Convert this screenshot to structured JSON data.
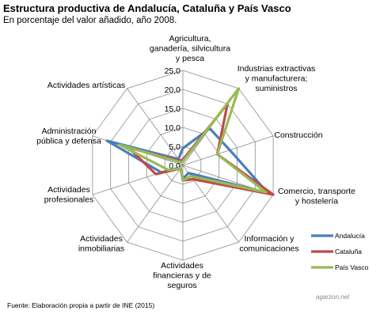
{
  "header": {
    "title": "Estructura productiva de Andalucía, Cataluña y País Vasco",
    "subtitle": "En porcentaje del valor añadido, año 2008."
  },
  "footer": {
    "source": "Fuente: Elaboración propia a partir de INE (2015)",
    "watermark": "agarzon.net"
  },
  "chart_data": {
    "type": "radar",
    "title": "Estructura productiva de Andalucía, Cataluña y País Vasco",
    "subtitle": "En porcentaje del valor añadido, año 2008.",
    "categories": [
      [
        "Agricultura,",
        "ganadería, silvicultura",
        "y pesca"
      ],
      [
        "Industrias extractivas",
        "y manufacturera;",
        "suministros"
      ],
      [
        "Construcción"
      ],
      [
        "Comercio, transporte",
        "y hostelería"
      ],
      [
        "Información y",
        "comunicaciones"
      ],
      [
        "Actividades",
        "financieras y de",
        "seguros"
      ],
      [
        "Actividades",
        "inmobiliarias"
      ],
      [
        "Actividades",
        "profesionales"
      ],
      [
        "Administración",
        "pública y defensa"
      ],
      [
        "Actividades artísticas"
      ]
    ],
    "ticks": [
      "0,0",
      "5,0",
      "10,0",
      "15,0",
      "20,0",
      "25,0"
    ],
    "rlim": [
      0,
      25
    ],
    "grid": true,
    "legend_position": "bottom-right",
    "series": [
      {
        "name": "Andalucía",
        "color": "#4a7ebb",
        "values": [
          4.5,
          12.0,
          13.0,
          23.5,
          2.5,
          3.5,
          1.0,
          6.0,
          21.0,
          2.0
        ]
      },
      {
        "name": "Cataluña",
        "color": "#be4b48",
        "values": [
          1.5,
          20.0,
          9.5,
          25.0,
          4.5,
          4.0,
          1.0,
          7.5,
          15.0,
          1.5
        ]
      },
      {
        "name": "País Vasco",
        "color": "#98b954",
        "values": [
          1.0,
          25.0,
          9.5,
          23.0,
          3.5,
          4.0,
          1.0,
          4.0,
          17.5,
          1.0
        ]
      }
    ]
  }
}
